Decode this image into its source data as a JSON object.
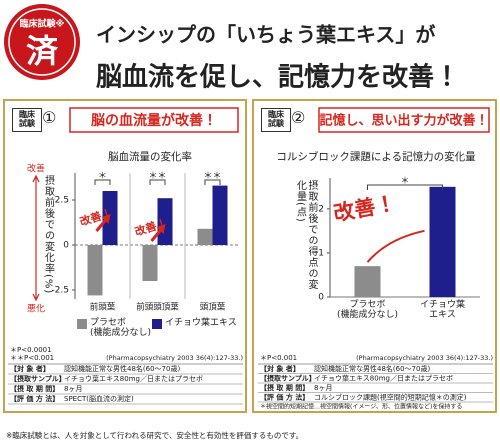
{
  "header": {
    "stamp_top": "臨床試験※",
    "stamp_main": "済",
    "headline_line1": "インシップの「いちょう葉エキス」が",
    "headline_line2": "脳血流を促し、記憶力を改善！"
  },
  "panels": [
    {
      "badge": "臨床\n試験",
      "badge_number": "①",
      "headline": "脳の血流量が改善！",
      "notes": [
        "＊P<0.0001",
        "＊＊P<0.001"
      ],
      "citation": "(Pharmacopsychiatry 2003 36(4):127-33.)",
      "table": [
        [
          "【対 象 者】",
          "認知機能正常な男性48名(60〜70歳)"
        ],
        [
          "【摂取サンプル】",
          "イチョウ葉エキス80mg／日またはプラセボ"
        ],
        [
          "【摂 取 期 間】",
          "8ヶ月"
        ],
        [
          "【評 価 方 法】",
          "SPECT(脳血流の測定)"
        ]
      ]
    },
    {
      "badge": "臨床\n試験",
      "badge_number": "②",
      "headline": "記憶し、思い出す力が改善！",
      "notes": [
        "＊P<0.001"
      ],
      "citation": "(Pharmacopsychiatry 2003 36(4):127-33.)",
      "table": [
        [
          "【対 象 者】",
          "認知機能正常な男性48名(60〜70歳)"
        ],
        [
          "【摂取サンプル】",
          "イチョウ葉エキス80mg／日またはプラセボ"
        ],
        [
          "【摂 取 期 間】",
          "8ヶ月"
        ],
        [
          "【評 価 方 法】",
          "コルシブロック課題(視空間的短期記憶＊の測定)"
        ]
      ],
      "footnote": "＊視空間的短期記憶…視空間情報(イメージ、形、位置情報など)を保持する"
    }
  ],
  "chart_data": [
    {
      "type": "bar",
      "title": "脳血流量の変化率",
      "y_label": "摂取前後での変化率(%)",
      "y_top_label": "改善",
      "y_bottom_label": "悪化",
      "categories": [
        "前頭葉",
        "前頭頭頂葉",
        "頭頂葉"
      ],
      "series": [
        {
          "name": "プラセボ\n(機能成分なし)",
          "color": "#8c8c8c",
          "values": [
            -2.8,
            -2.0,
            0.9
          ]
        },
        {
          "name": "イチョウ葉エキス",
          "color": "#1e1e8c",
          "values": [
            3.0,
            2.6,
            3.3
          ]
        }
      ],
      "ylim": [
        -3,
        4
      ],
      "yticks": [
        2.5,
        0,
        -2.5
      ],
      "significance": [
        "＊",
        "＊＊",
        "＊＊"
      ],
      "annotations": [
        "改善！",
        "改善！"
      ]
    },
    {
      "type": "bar",
      "title": "コルシブロック課題による記憶力の変化量",
      "y_label": "摂取前後での得点の変化量(点)",
      "categories": [
        "プラセボ\n(機能成分なし)",
        "イチョウ葉\nエキス"
      ],
      "values": [
        0.7,
        2.5
      ],
      "colors": [
        "#8c8c8c",
        "#1e1e8c"
      ],
      "ylim": [
        0,
        2.7
      ],
      "yticks": [
        0,
        1,
        2
      ],
      "significance": [
        "＊"
      ],
      "annotations": [
        "改善！"
      ]
    }
  ],
  "footer": "※臨床試験とは、人を対象として行われる研究で、安全性と有効性を評価するものです。"
}
